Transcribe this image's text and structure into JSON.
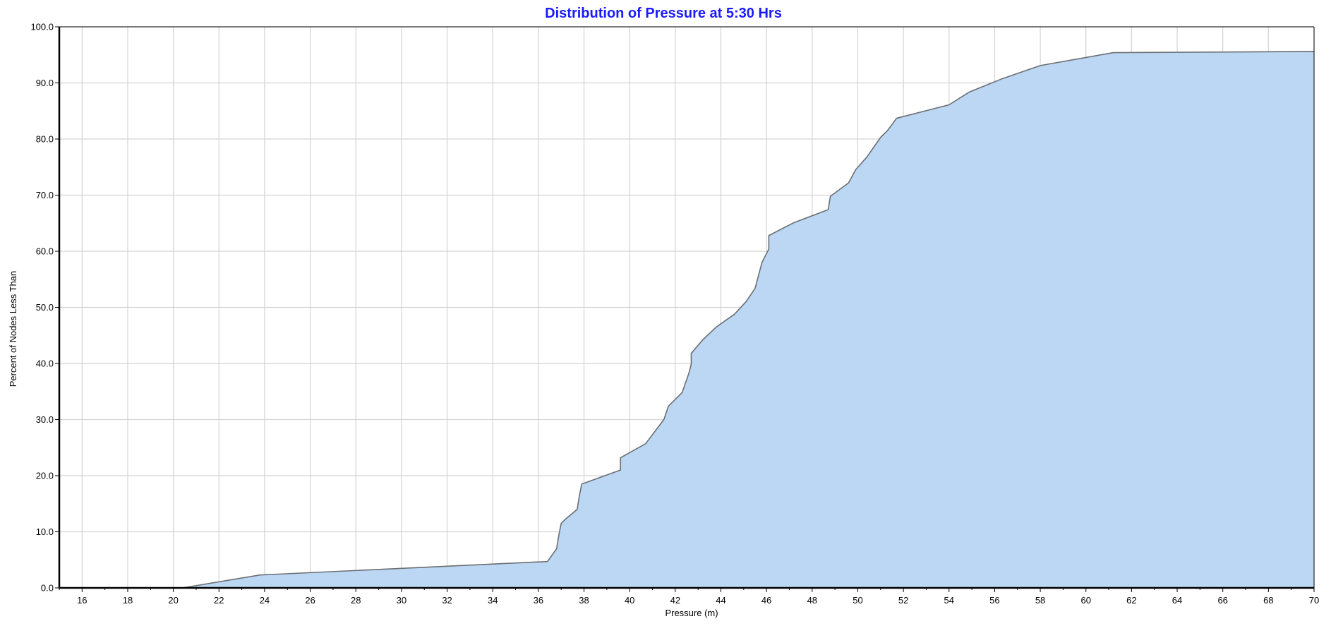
{
  "colors": {
    "title": "#1a1aff",
    "fill": "#bcd7f3",
    "line": "#6b6e72",
    "grid": "#d3d3d3",
    "axis": "#000000"
  },
  "chart_data": {
    "type": "area",
    "title": "Distribution of Pressure at 5:30 Hrs",
    "xlabel": "Pressure (m)",
    "ylabel": "Percent of Nodes Less Than",
    "xlim": [
      15,
      70
    ],
    "ylim": [
      0,
      100
    ],
    "grid": true,
    "x_ticks": [
      16,
      18,
      20,
      22,
      24,
      26,
      28,
      30,
      32,
      34,
      36,
      38,
      40,
      42,
      44,
      46,
      48,
      50,
      52,
      54,
      56,
      58,
      60,
      62,
      64,
      66,
      68,
      70
    ],
    "y_ticks": [
      0,
      10,
      20,
      30,
      40,
      50,
      60,
      70,
      80,
      90,
      100
    ],
    "y_tick_labels": [
      "0.0",
      "10.0",
      "20.0",
      "30.0",
      "40.0",
      "50.0",
      "60.0",
      "70.0",
      "80.0",
      "90.0",
      "100.0"
    ],
    "series": [
      {
        "x": [
          15,
          20.4,
          23.8,
          36.4,
          36.8,
          36.9,
          37.0,
          37.2,
          37.7,
          37.8,
          37.9,
          39.6,
          39.6,
          40.7,
          41.5,
          41.7,
          42.3,
          42.6,
          42.7,
          42.7,
          43.2,
          43.8,
          44.6,
          45.1,
          45.5,
          45.8,
          46.1,
          46.1,
          47.2,
          48.7,
          48.8,
          49.6,
          49.9,
          50.4,
          51.0,
          51.3,
          51.7,
          54.0,
          54.9,
          56.3,
          58.0,
          61.2,
          70.0
        ],
        "y": [
          0,
          0,
          2.3,
          4.7,
          7.0,
          9.5,
          11.5,
          12.3,
          14.0,
          16.5,
          18.5,
          21.0,
          23.2,
          25.7,
          30.0,
          32.4,
          34.8,
          38.3,
          39.9,
          41.8,
          44.2,
          46.5,
          48.8,
          51.0,
          53.4,
          58.0,
          60.4,
          62.8,
          65.1,
          67.4,
          69.8,
          72.2,
          74.5,
          76.8,
          80.3,
          81.5,
          83.7,
          86.1,
          88.4,
          90.7,
          93.1,
          95.4,
          95.6
        ]
      }
    ]
  }
}
